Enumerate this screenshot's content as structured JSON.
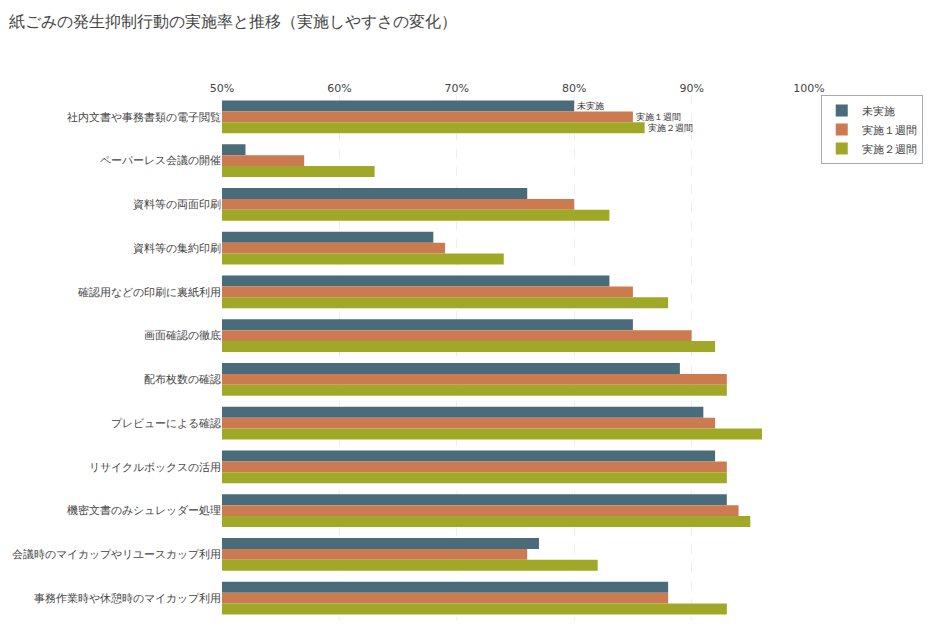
{
  "chart_data": {
    "type": "bar",
    "orientation": "horizontal",
    "title": "紙ごみの発生抑制行動の実施率と推移（実施しやすさの変化）",
    "categories": [
      "社内文書や事務書類の電子閲覧",
      "ペーパーレス会議の開催",
      "資料等の両面印刷",
      "資料等の集約印刷",
      "確認用などの印刷に裏紙利用",
      "画面確認の徹底",
      "配布枚数の確認",
      "プレビューによる確認",
      "リサイクルボックスの活用",
      "機密文書のみシュレッダー処理",
      "会議時のマイカップやリユースカップ利用",
      "事務作業時や休憩時のマイカップ利用"
    ],
    "series": [
      {
        "name": "未実施",
        "color": "#4a6b7a",
        "values": [
          80,
          52,
          76,
          68,
          83,
          85,
          89,
          91,
          92,
          93,
          77,
          88
        ]
      },
      {
        "name": "実施１週間",
        "color": "#cc7a50",
        "values": [
          85,
          57,
          80,
          69,
          85,
          90,
          93,
          92,
          93,
          94,
          76,
          88
        ]
      },
      {
        "name": "実施２週間",
        "color": "#a0a828",
        "values": [
          86,
          63,
          83,
          74,
          88,
          92,
          93,
          96,
          93,
          95,
          82,
          93
        ]
      }
    ],
    "xlim": [
      50,
      100
    ],
    "xticks": [
      {
        "value": 50,
        "label": "50%"
      },
      {
        "value": 60,
        "label": "60%"
      },
      {
        "value": 70,
        "label": "70%"
      },
      {
        "value": 80,
        "label": "80%"
      },
      {
        "value": 90,
        "label": "90%"
      },
      {
        "value": 100,
        "label": "100%"
      }
    ],
    "grid": true,
    "legend": "upper right",
    "annotations": [
      {
        "text": "未実施",
        "series": "未実施",
        "category": "社内文書や事務書類の電子閲覧"
      },
      {
        "text": "実施１週間",
        "series": "実施１週間",
        "category": "社内文書や事務書類の電子閲覧"
      },
      {
        "text": "実施２週間",
        "series": "実施２週間",
        "category": "社内文書や事務書類の電子閲覧"
      }
    ]
  }
}
